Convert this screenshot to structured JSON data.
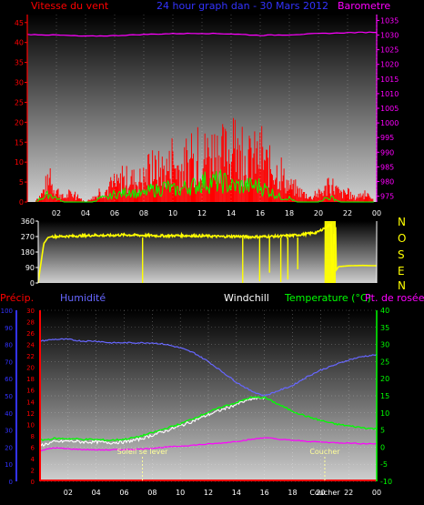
{
  "colors": {
    "background": "#000000",
    "wind": "#ff0000",
    "wind_gust": "#00ff00",
    "title": "#3333ff",
    "barometer": "#ff00ff",
    "direction": "#ffff00",
    "humidity": "#6666ff",
    "windchill": "#ffffff",
    "temperature": "#00ff00",
    "dewpoint": "#ff00ff",
    "precip": "#ff0000",
    "sun": "#ffff99",
    "grid": "#ffffff"
  },
  "header": {
    "wind_label": "Vitesse du vent",
    "title": "24 hour graph dan - 30 Mars 2012",
    "baro_label": "Barometre"
  },
  "direction_letters": [
    "N",
    "O",
    "S",
    "E",
    "N"
  ],
  "bottom_labels": {
    "precip": "Précip.",
    "humidity": "Humidité",
    "windchill": "Windchill",
    "temperature": "Temperature (°C)",
    "dewpoint": "Pt. de rosée",
    "sunrise": "Soleil se lever",
    "sunset": "Coucher"
  },
  "chart_data": [
    {
      "type": "bar",
      "title": "24 hour graph dan - 30 Mars 2012",
      "xlabel": "",
      "x_ticks": [
        "02",
        "04",
        "06",
        "08",
        "10",
        "12",
        "14",
        "16",
        "18",
        "20",
        "22",
        "00"
      ],
      "y_left": {
        "label": "Vitesse du vent",
        "ticks": [
          0,
          5,
          10,
          15,
          20,
          25,
          30,
          35,
          40,
          45
        ],
        "ylim": [
          0,
          47
        ]
      },
      "y_right": {
        "label": "Barometre",
        "ticks": [
          975,
          980,
          985,
          990,
          995,
          1000,
          1005,
          1010,
          1015,
          1020,
          1025,
          1030,
          1035
        ],
        "ylim": [
          973,
          1037
        ]
      },
      "series": [
        {
          "name": "Vitesse du vent",
          "hours": [
            0.0,
            0.5,
            1.0,
            1.5,
            2.0,
            2.5,
            3.0,
            3.5,
            4.0,
            4.5,
            5.0,
            5.5,
            6.0,
            6.5,
            7.0,
            7.5,
            8.0,
            8.5,
            9.0,
            9.5,
            10.0,
            10.5,
            11.0,
            11.5,
            12.0,
            12.5,
            13.0,
            13.5,
            14.0,
            14.5,
            15.0,
            15.5,
            16.0,
            16.5,
            17.0,
            17.5,
            18.0,
            18.5,
            19.0,
            19.5,
            20.0,
            20.5,
            21.0,
            21.5,
            22.0,
            22.5,
            23.0,
            23.5,
            24.0
          ],
          "values": [
            0,
            0,
            2,
            5,
            3,
            1,
            2,
            1,
            0,
            1,
            2,
            3,
            4,
            5,
            6,
            5,
            6,
            7,
            8,
            8,
            9,
            8,
            9,
            10,
            11,
            12,
            13,
            12,
            12,
            11,
            10,
            11,
            11,
            9,
            8,
            6,
            4,
            3,
            2,
            1,
            2,
            3,
            4,
            2,
            2,
            1,
            2,
            1,
            0
          ]
        },
        {
          "name": "Rafale",
          "hours": [
            0.0,
            0.5,
            1.0,
            1.5,
            2.0,
            2.5,
            3.0,
            3.5,
            4.0,
            4.5,
            5.0,
            5.5,
            6.0,
            6.5,
            7.0,
            7.5,
            8.0,
            8.5,
            9.0,
            9.5,
            10.0,
            10.5,
            11.0,
            11.5,
            12.0,
            12.5,
            13.0,
            13.5,
            14.0,
            14.5,
            15.0,
            15.5,
            16.0,
            16.5,
            17.0,
            17.5,
            18.0,
            18.5,
            19.0,
            19.5,
            20.0,
            20.5,
            21.0,
            21.5,
            22.0,
            22.5,
            23.0,
            23.5,
            24.0
          ],
          "values": [
            0,
            0,
            1,
            2,
            1,
            0,
            0,
            0,
            0,
            0,
            1,
            1,
            2,
            2,
            3,
            2,
            2,
            3,
            3,
            4,
            3,
            3,
            4,
            4,
            5,
            5,
            5,
            5,
            4,
            4,
            4,
            4,
            4,
            3,
            2,
            1,
            1,
            0,
            0,
            0,
            0,
            1,
            1,
            0,
            0,
            0,
            0,
            0,
            0
          ]
        },
        {
          "name": "Barometre",
          "hours": [
            0,
            2,
            4,
            6,
            8,
            10,
            12,
            14,
            16,
            18,
            20,
            22,
            24
          ],
          "values": [
            1030.2,
            1030.0,
            1029.6,
            1029.8,
            1030.2,
            1030.5,
            1030.6,
            1030.4,
            1029.9,
            1030.1,
            1030.5,
            1030.8,
            1031.0
          ]
        }
      ]
    },
    {
      "type": "line",
      "title": "",
      "x_ticks": [
        "02",
        "04",
        "06",
        "08",
        "10",
        "12",
        "14",
        "16",
        "18",
        "20",
        "22",
        "00"
      ],
      "y_left": {
        "ticks": [
          0,
          90,
          180,
          270,
          360
        ],
        "ylim": [
          0,
          360
        ]
      },
      "series": [
        {
          "name": "Direction du vent",
          "hours": [
            0.0,
            0.2,
            0.4,
            0.7,
            1.0,
            2.0,
            3.0,
            4.0,
            5.0,
            6.0,
            7.0,
            8.0,
            9.0,
            10.0,
            11.0,
            12.0,
            13.0,
            14.0,
            15.0,
            16.0,
            17.0,
            18.0,
            19.0,
            19.8,
            20.5,
            20.9,
            21.0,
            21.3,
            22.0,
            23.0,
            24.0
          ],
          "values": [
            0,
            120,
            230,
            265,
            270,
            272,
            274,
            278,
            276,
            280,
            278,
            276,
            274,
            276,
            275,
            273,
            270,
            272,
            268,
            270,
            272,
            276,
            285,
            295,
            330,
            345,
            60,
            95,
            100,
            102,
            100
          ]
        }
      ]
    },
    {
      "type": "line",
      "title": "",
      "x_ticks": [
        "02",
        "04",
        "06",
        "08",
        "10",
        "12",
        "14",
        "16",
        "18",
        "20",
        "22",
        "00"
      ],
      "y_precip": {
        "label": "Précip.",
        "ticks": [
          0,
          10,
          20,
          30,
          40,
          50,
          60,
          70,
          80,
          90,
          100
        ],
        "ylim": [
          0,
          100
        ]
      },
      "y_humidity": {
        "label": "Humidité",
        "ticks": [
          0,
          2,
          4,
          6,
          8,
          10,
          12,
          14,
          16,
          18,
          20,
          22,
          24,
          26,
          28,
          30
        ],
        "ylim": [
          0,
          30
        ]
      },
      "y_temperature": {
        "label": "Temperature (°C)",
        "ticks": [
          -10,
          -5,
          0,
          5,
          10,
          15,
          20,
          25,
          30,
          35,
          40
        ],
        "ylim": [
          -10,
          40
        ]
      },
      "annotations": [
        {
          "label": "Soleil se lever",
          "hour": 7.3
        },
        {
          "label": "Coucher",
          "hour": 20.3
        }
      ],
      "series": [
        {
          "name": "Humidité",
          "hours": [
            0,
            1,
            2,
            3,
            4,
            5,
            6,
            7,
            8,
            9,
            10,
            11,
            12,
            13,
            14,
            15,
            16,
            17,
            18,
            19,
            20,
            21,
            22,
            23,
            24
          ],
          "values": [
            82,
            83,
            83,
            82,
            82,
            81,
            81,
            81,
            81,
            80,
            78,
            75,
            70,
            64,
            58,
            53,
            50,
            53,
            56,
            61,
            65,
            68,
            71,
            73,
            74
          ]
        },
        {
          "name": "Temperature (°C)",
          "hours": [
            0,
            1,
            2,
            3,
            4,
            5,
            6,
            7,
            8,
            9,
            10,
            11,
            12,
            13,
            14,
            15,
            16,
            17,
            18,
            19,
            20,
            21,
            22,
            23,
            24
          ],
          "values": [
            2.0,
            2.5,
            2.5,
            2.3,
            2.2,
            2.0,
            2.3,
            3.0,
            4.2,
            5.5,
            6.8,
            8.5,
            10.2,
            11.8,
            13.0,
            14.5,
            14.5,
            12.5,
            10.5,
            9.0,
            7.8,
            6.8,
            6.2,
            5.7,
            5.3
          ]
        },
        {
          "name": "Windchill",
          "hours": [
            0,
            1,
            2,
            3,
            4,
            5,
            6,
            7,
            8,
            9,
            10,
            11,
            12,
            13,
            14,
            15,
            16
          ],
          "values": [
            0.5,
            1.5,
            1.8,
            1.5,
            1.5,
            1.3,
            1.5,
            2.2,
            3.5,
            4.8,
            6.2,
            7.8,
            9.5,
            11.0,
            12.5,
            14.0,
            14.5
          ]
        },
        {
          "name": "Pt. de rosée",
          "hours": [
            0,
            1,
            2,
            3,
            4,
            5,
            6,
            7,
            8,
            9,
            10,
            11,
            12,
            13,
            14,
            15,
            16,
            17,
            18,
            19,
            20,
            21,
            22,
            23,
            24
          ],
          "values": [
            -1.0,
            -0.2,
            -0.5,
            -0.7,
            -0.8,
            -0.8,
            -0.7,
            -0.6,
            -0.3,
            0.0,
            0.3,
            0.6,
            0.9,
            1.2,
            1.7,
            2.2,
            2.8,
            2.3,
            2.0,
            1.7,
            1.5,
            1.3,
            1.2,
            1.0,
            1.0
          ]
        },
        {
          "name": "Précip.",
          "hours": [
            0,
            24
          ],
          "values": [
            0,
            0
          ]
        }
      ]
    }
  ]
}
